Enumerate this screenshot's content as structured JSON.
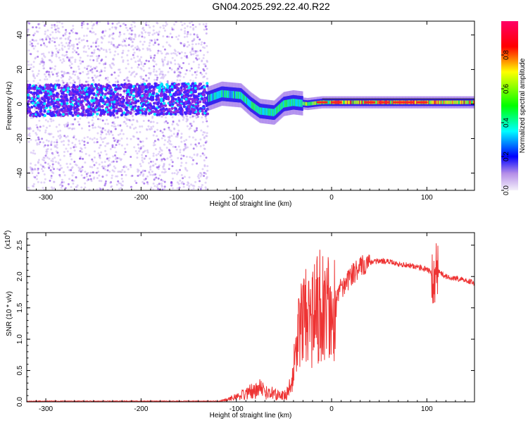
{
  "title": "GN04.2025.292.22.40.R22",
  "chart_data": [
    {
      "type": "heatmap",
      "name": "spectrogram",
      "xlabel": "Height of straight line (km)",
      "ylabel": "Frequency (Hz)",
      "xlim": [
        -320,
        150
      ],
      "ylim": [
        -50,
        48
      ],
      "xticks": [
        -300,
        -200,
        -100,
        0,
        100
      ],
      "xtick_labels": [
        "-300",
        "-200",
        "-100",
        "0",
        "100"
      ],
      "yticks": [
        -40,
        -20,
        0,
        20,
        40
      ],
      "ytick_labels": [
        "-40",
        "-20",
        "0",
        "20",
        "40"
      ],
      "colorbar": {
        "label": "Normalized spectral amplitude",
        "range": [
          0,
          1
        ],
        "ticks": [
          0.0,
          0.2,
          0.4,
          0.6,
          0.8
        ],
        "tick_labels": [
          "0.0",
          "0.2",
          "0.4",
          "0.6",
          "0.8"
        ],
        "colors": [
          "#f4f0fa",
          "#8a2be2",
          "#0000ff",
          "#00ffff",
          "#00ff00",
          "#ffff00",
          "#ff0000",
          "#ff0066"
        ]
      },
      "trace": {
        "description_points": [
          {
            "x": -320,
            "f": 2
          },
          {
            "x": -130,
            "f": 3
          },
          {
            "x": -115,
            "f": 6
          },
          {
            "x": -95,
            "f": 5
          },
          {
            "x": -85,
            "f": 0
          },
          {
            "x": -75,
            "f": -4
          },
          {
            "x": -60,
            "f": -5
          },
          {
            "x": -50,
            "f": 0
          },
          {
            "x": -40,
            "f": 1
          },
          {
            "x": -25,
            "f": 0
          },
          {
            "x": -10,
            "f": 1
          },
          {
            "x": 0,
            "f": 1
          },
          {
            "x": 60,
            "f": 1
          },
          {
            "x": 100,
            "f": 1
          },
          {
            "x": 150,
            "f": 1
          }
        ],
        "noise_zone_x": [
          -320,
          -130
        ]
      }
    },
    {
      "type": "line",
      "name": "snr",
      "xlabel": "Height of straight line (km)",
      "ylabel": "SNR (10 * v/v)",
      "exponent_label": "(x10",
      "exponent_power": "4",
      "exponent_close": ")",
      "xlim": [
        -320,
        150
      ],
      "ylim": [
        0,
        2.7
      ],
      "xticks": [
        -300,
        -200,
        -100,
        0,
        100
      ],
      "xtick_labels": [
        "-300",
        "-200",
        "-100",
        "0",
        "100"
      ],
      "yticks": [
        0,
        0.5,
        1.0,
        1.5,
        2.0,
        2.5
      ],
      "ytick_labels": [
        "0.0",
        "0.5",
        "1.0",
        "1.5",
        "2.0",
        "2.5"
      ],
      "color": "#ee3333",
      "series": [
        {
          "name": "SNR envelope",
          "x": [
            -320,
            -120,
            -110,
            -100,
            -90,
            -80,
            -75,
            -70,
            -60,
            -50,
            -42,
            -38,
            -32,
            -28,
            -20,
            -15,
            -10,
            -5,
            0,
            10,
            20,
            30,
            40,
            50,
            60,
            70,
            80,
            90,
            100,
            105,
            108,
            110,
            120,
            130,
            140,
            150
          ],
          "y": [
            0.0,
            0.01,
            0.05,
            0.12,
            0.2,
            0.3,
            0.35,
            0.25,
            0.2,
            0.15,
            0.3,
            0.9,
            1.4,
            1.6,
            1.5,
            1.7,
            1.8,
            1.7,
            1.65,
            1.8,
            2.0,
            2.15,
            2.22,
            2.25,
            2.24,
            2.2,
            2.18,
            2.15,
            2.12,
            2.05,
            1.9,
            2.1,
            2.0,
            1.97,
            1.94,
            1.9
          ]
        }
      ]
    }
  ]
}
